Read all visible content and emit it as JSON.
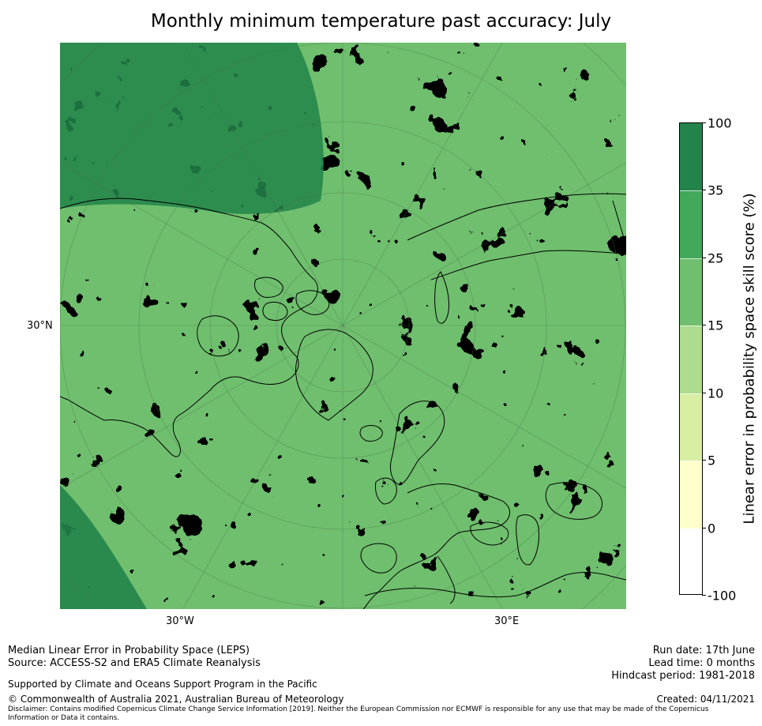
{
  "title": "Monthly minimum temperature past accuracy: July",
  "map": {
    "projection": "north-polar-stereographic",
    "lat_label": "30°N",
    "lon_labels": [
      "30°W",
      "30°E"
    ]
  },
  "colorbar": {
    "label": "Linear error in probability space skill score (%)",
    "bins": [
      {
        "from": 35,
        "to": 100,
        "color": "#22844a"
      },
      {
        "from": 25,
        "to": 35,
        "color": "#42a85a"
      },
      {
        "from": 15,
        "to": 25,
        "color": "#6fbf6e"
      },
      {
        "from": 10,
        "to": 15,
        "color": "#addc8f"
      },
      {
        "from": 5,
        "to": 10,
        "color": "#d8eea3"
      },
      {
        "from": 0,
        "to": 5,
        "color": "#ffffcc"
      },
      {
        "from": -100,
        "to": 0,
        "color": "#ffffff"
      }
    ],
    "ticks": [
      "100",
      "35",
      "25",
      "15",
      "10",
      "5",
      "0",
      "-100"
    ]
  },
  "footer": {
    "method": "Median Linear Error in Probability Space (LEPS)",
    "source": "Source: ACCESS-S2 and ERA5 Climate Reanalysis",
    "support": "Supported by Climate and Oceans Support Program in the Pacific",
    "copyright": "© Commonwealth of Australia 2021, Australian Bureau of Meteorology",
    "disclaimer": "Disclaimer: Contains modified Copernicus Climate Change Service Information [2019]. Neither the European Commission nor ECMWF is responsible for any use that may be made of the Copernicus Information or Data it contains.",
    "run_date": "Run date: 17th June",
    "lead_time": "Lead time: 0 months",
    "hindcast": "Hindcast period: 1981-2018",
    "created": "Created: 04/11/2021"
  }
}
